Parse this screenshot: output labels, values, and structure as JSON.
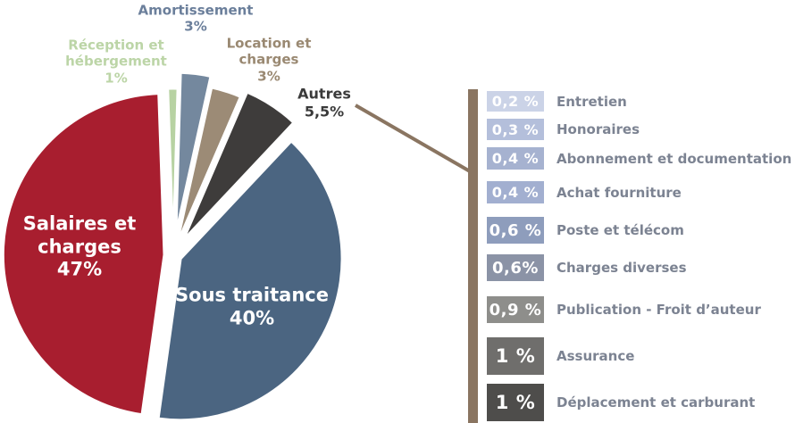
{
  "chart_data": {
    "type": "pie",
    "title": "",
    "legend_position": "labels-on-chart",
    "slices": [
      {
        "name": "Réception et hébergement",
        "pct_label": "1%",
        "value": 1,
        "color": "#B7D2A2",
        "label_color": "#BCD5A7",
        "text_inside": false
      },
      {
        "name": "Amortissement",
        "pct_label": "3%",
        "value": 3,
        "color": "#74889E",
        "label_color": "#6B7F9B",
        "text_inside": false
      },
      {
        "name": "Location et charges",
        "pct_label": "3%",
        "value": 3,
        "color": "#9C8B76",
        "label_color": "#9A8972",
        "text_inside": false
      },
      {
        "name": "Autres",
        "pct_label": "5,5%",
        "value": 5.5,
        "color": "#3E3C3B",
        "label_color": "#3A3A3A",
        "text_inside": false
      },
      {
        "name": "Sous traitance",
        "pct_label": "40%",
        "value": 40,
        "color": "#4B6581",
        "label_color": "#FFFFFF",
        "text_inside": true
      },
      {
        "name": "Salaires et charges",
        "pct_label": "47%",
        "value": 47,
        "color": "#A81E2F",
        "label_color": "#FFFFFF",
        "text_inside": true
      }
    ],
    "breakdown": {
      "parent": "Autres",
      "connector_color": "#8A7561",
      "label_color": "#7C8392",
      "items": [
        {
          "pct": "0,2 %",
          "label": "Entretien",
          "color": "#CBD3E7"
        },
        {
          "pct": "0,3 %",
          "label": "Honoraires",
          "color": "#B4BFDB"
        },
        {
          "pct": "0,4 %",
          "label": "Abonnement et documentation",
          "color": "#A6B2D0"
        },
        {
          "pct": "0,4 %",
          "label": "Achat fourniture",
          "color": "#A2AFD0"
        },
        {
          "pct": "0,6 %",
          "label": "Poste et télécom",
          "color": "#8E9DBC"
        },
        {
          "pct": "0,6%",
          "label": "Charges diverses",
          "color": "#8B93A6"
        },
        {
          "pct": "0,9 %",
          "label": "Publication - Froit d’auteur",
          "color": "#8E8E8B"
        },
        {
          "pct": "1 %",
          "label": "Assurance",
          "color": "#6F6E6C"
        },
        {
          "pct": "1 %",
          "label": "Déplacement et carburant",
          "color": "#4E4D4B"
        }
      ]
    }
  }
}
